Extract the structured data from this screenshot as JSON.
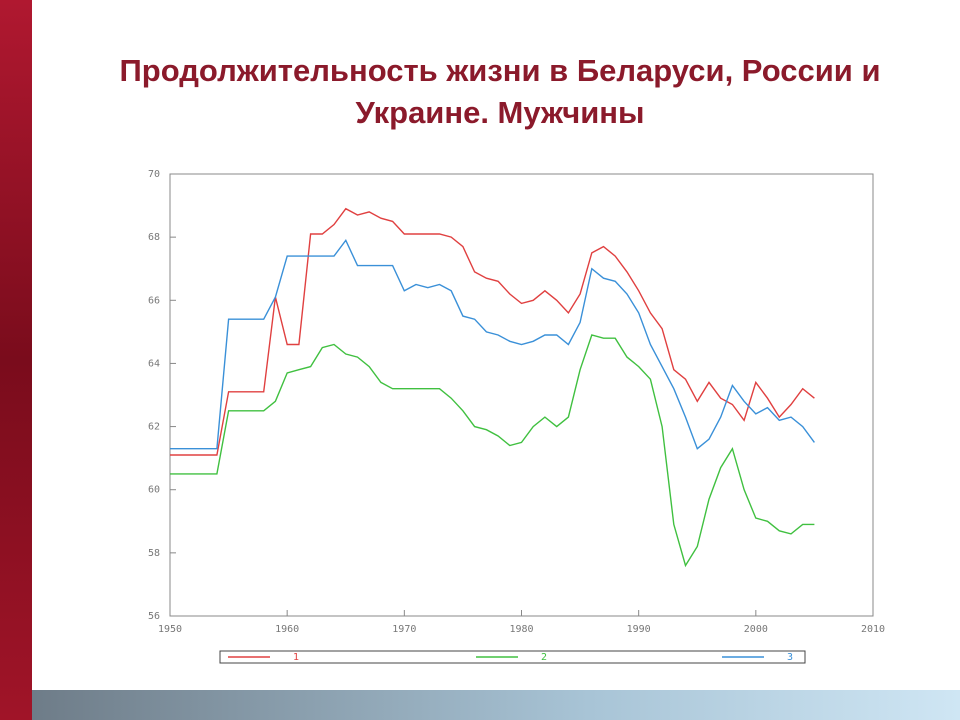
{
  "chart_data": {
    "type": "line",
    "title": "Продолжительность жизни в Беларуси, России и Украине. Мужчины",
    "x": [
      1950,
      1951,
      1952,
      1953,
      1954,
      1955,
      1956,
      1957,
      1958,
      1959,
      1960,
      1961,
      1962,
      1963,
      1964,
      1965,
      1966,
      1967,
      1968,
      1969,
      1970,
      1971,
      1972,
      1973,
      1974,
      1975,
      1976,
      1977,
      1978,
      1979,
      1980,
      1981,
      1982,
      1983,
      1984,
      1985,
      1986,
      1987,
      1988,
      1989,
      1990,
      1991,
      1992,
      1993,
      1994,
      1995,
      1996,
      1997,
      1998,
      1999,
      2000,
      2001,
      2002,
      2003,
      2004,
      2005
    ],
    "series": [
      {
        "name": "1",
        "color": "#e04040",
        "values": [
          61.1,
          61.1,
          61.1,
          61.1,
          61.1,
          63.1,
          63.1,
          63.1,
          63.1,
          66.1,
          64.6,
          64.6,
          68.1,
          68.1,
          68.4,
          68.9,
          68.7,
          68.8,
          68.6,
          68.5,
          68.1,
          68.1,
          68.1,
          68.1,
          68.0,
          67.7,
          66.9,
          66.7,
          66.6,
          66.2,
          65.9,
          66.0,
          66.3,
          66.0,
          65.6,
          66.2,
          67.5,
          67.7,
          67.4,
          66.9,
          66.3,
          65.6,
          65.1,
          63.8,
          63.5,
          62.8,
          63.4,
          62.9,
          62.7,
          62.2,
          63.4,
          62.9,
          62.3,
          62.7,
          63.2,
          62.9
        ]
      },
      {
        "name": "2",
        "color": "#40c040",
        "values": [
          60.5,
          60.5,
          60.5,
          60.5,
          60.5,
          62.5,
          62.5,
          62.5,
          62.5,
          62.8,
          63.7,
          63.8,
          63.9,
          64.5,
          64.6,
          64.3,
          64.2,
          63.9,
          63.4,
          63.2,
          63.2,
          63.2,
          63.2,
          63.2,
          62.9,
          62.5,
          62.0,
          61.9,
          61.7,
          61.4,
          61.5,
          62.0,
          62.3,
          62.0,
          62.3,
          63.8,
          64.9,
          64.8,
          64.8,
          64.2,
          63.9,
          63.5,
          62.0,
          58.9,
          57.6,
          58.2,
          59.7,
          60.7,
          61.3,
          60.0,
          59.1,
          59.0,
          58.7,
          58.6,
          58.9,
          58.9
        ]
      },
      {
        "name": "3",
        "color": "#3a90d8",
        "values": [
          61.3,
          61.3,
          61.3,
          61.3,
          61.3,
          65.4,
          65.4,
          65.4,
          65.4,
          66.1,
          67.4,
          67.4,
          67.4,
          67.4,
          67.4,
          67.9,
          67.1,
          67.1,
          67.1,
          67.1,
          66.3,
          66.5,
          66.4,
          66.5,
          66.3,
          65.5,
          65.4,
          65.0,
          64.9,
          64.7,
          64.6,
          64.7,
          64.9,
          64.9,
          64.6,
          65.3,
          67.0,
          66.7,
          66.6,
          66.2,
          65.6,
          64.6,
          63.9,
          63.2,
          62.3,
          61.3,
          61.6,
          62.3,
          63.3,
          62.8,
          62.4,
          62.6,
          62.2,
          62.3,
          62.0,
          61.5
        ]
      }
    ],
    "xlim": [
      1950,
      2010
    ],
    "xticks": [
      1950,
      1960,
      1970,
      1980,
      1990,
      2000,
      2010
    ],
    "ylim": [
      56,
      70
    ],
    "yticks": [
      56,
      58,
      60,
      62,
      64,
      66,
      68,
      70
    ],
    "grid": false
  }
}
